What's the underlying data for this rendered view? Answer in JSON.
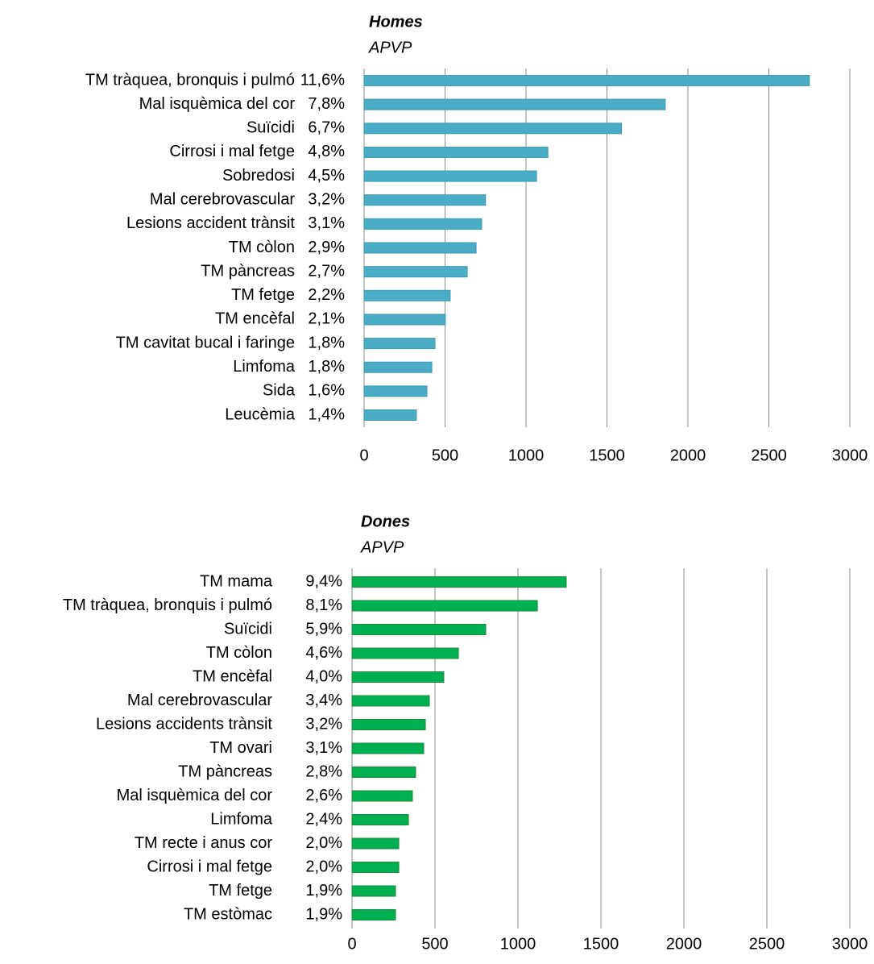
{
  "chart_data": [
    {
      "type": "bar",
      "orientation": "horizontal",
      "title": "Homes",
      "subtitle": "APVP",
      "categories": [
        "TM tràquea, bronquis i pulmó",
        "Mal isquèmica del cor",
        "Suïcidi",
        "Cirrosi i mal fetge",
        "Sobredosi",
        "Mal cerebrovascular",
        "Lesions accident trànsit",
        "TM còlon",
        "TM pàncreas",
        "TM fetge",
        "TM encèfal",
        "TM cavitat bucal i faringe",
        "Limfoma",
        "Sida",
        "Leucèmia"
      ],
      "shares": [
        "11,6%",
        "7,8%",
        "6,7%",
        "4,8%",
        "4,5%",
        "3,2%",
        "3,1%",
        "2,9%",
        "2,7%",
        "2,2%",
        "2,1%",
        "1,8%",
        "1,8%",
        "1,6%",
        "1,4%"
      ],
      "values": [
        2750,
        1860,
        1590,
        1135,
        1065,
        750,
        726,
        692,
        637,
        532,
        502,
        438,
        418,
        388,
        323
      ],
      "color": "#4bacc6",
      "border": "#3c9ab2",
      "xlim": [
        0,
        3000
      ],
      "xticks": [
        0,
        500,
        1000,
        1500,
        2000,
        2500,
        3000
      ],
      "grid": true
    },
    {
      "type": "bar",
      "orientation": "horizontal",
      "title": "Dones",
      "subtitle": "APVP",
      "categories": [
        "TM mama",
        "TM tràquea, bronquis i pulmó",
        "Suïcidi",
        "TM còlon",
        "TM encèfal",
        "Mal cerebrovascular",
        "Lesions accidents trànsit",
        "TM ovari",
        "TM pàncreas",
        "Mal isquèmica del cor",
        "Limfoma",
        "TM recte i anus cor",
        "Cirrosi i mal fetge",
        "TM fetge",
        "TM estòmac"
      ],
      "shares": [
        "9,4%",
        "8,1%",
        "5,9%",
        "4,6%",
        "4,0%",
        "3,4%",
        "3,2%",
        "3,1%",
        "2,8%",
        "2,6%",
        "2,4%",
        "2,0%",
        "2,0%",
        "1,9%",
        "1,9%"
      ],
      "values": [
        1291,
        1117,
        806,
        641,
        553,
        466,
        442,
        432,
        383,
        364,
        340,
        282,
        282,
        262,
        262
      ],
      "color": "#00b050",
      "border": "#1f8a3c",
      "xlim": [
        0,
        3000
      ],
      "xticks": [
        0,
        500,
        1000,
        1500,
        2000,
        2500,
        3000
      ],
      "grid": true
    }
  ]
}
